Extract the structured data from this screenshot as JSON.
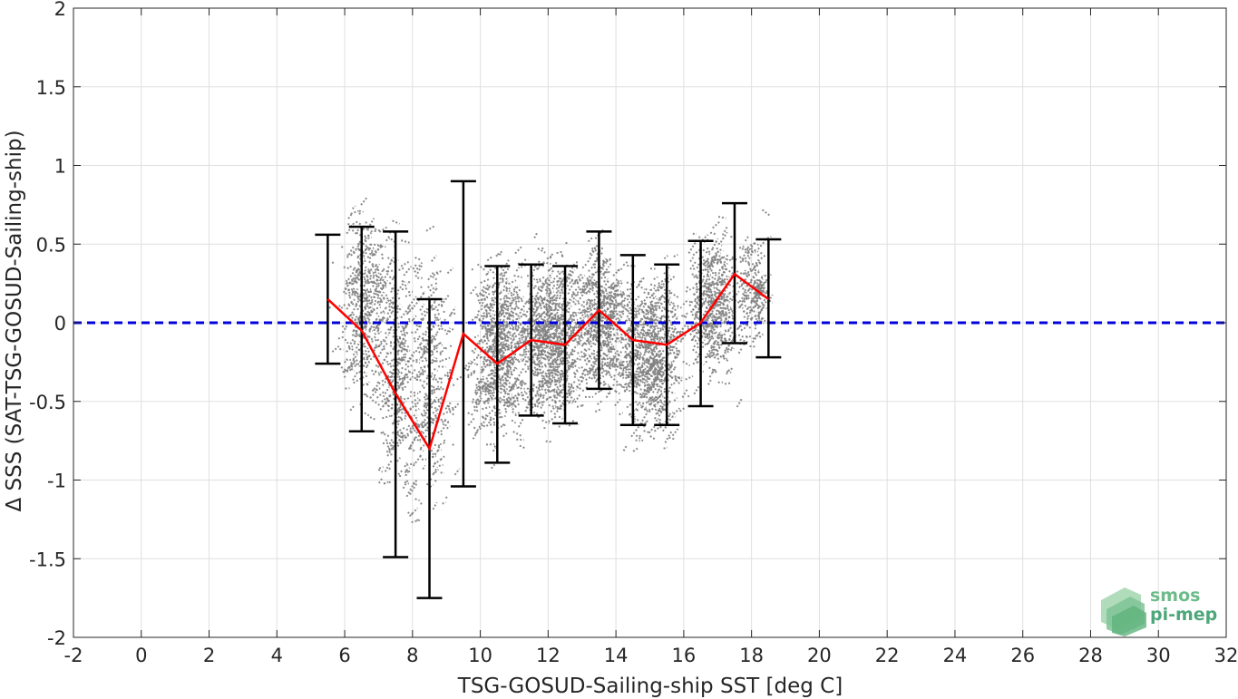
{
  "chart_data": {
    "type": "scatter",
    "xlabel": "TSG-GOSUD-Sailing-ship SST [deg C]",
    "ylabel": "Δ SSS (SAT-TSG-GOSUD-Sailing-ship)",
    "xlim": [
      -2,
      32
    ],
    "ylim": [
      -2,
      2
    ],
    "x_ticks": [
      -2,
      0,
      2,
      4,
      6,
      8,
      10,
      12,
      14,
      16,
      18,
      20,
      22,
      24,
      26,
      28,
      30,
      32
    ],
    "y_ticks": [
      -2,
      -1.5,
      -1,
      -0.5,
      0,
      0.5,
      1,
      1.5,
      2
    ],
    "x_tick_labels": [
      "-2",
      "0",
      "2",
      "4",
      "6",
      "8",
      "10",
      "12",
      "14",
      "16",
      "18",
      "20",
      "22",
      "24",
      "26",
      "28",
      "30",
      "32"
    ],
    "y_tick_labels": [
      "-2",
      "-1.5",
      "-1",
      "-0.5",
      "0",
      "0.5",
      "1",
      "1.5",
      "2"
    ],
    "grid": true,
    "reference_line": {
      "y": 0,
      "style": "dashed",
      "color": "#0000dd"
    },
    "binned_stats": {
      "x": [
        5.5,
        6.5,
        7.5,
        8.5,
        9.5,
        10.5,
        11.5,
        12.5,
        13.5,
        14.5,
        15.5,
        16.5,
        17.5,
        18.5
      ],
      "mean": [
        0.15,
        -0.05,
        -0.45,
        -0.8,
        -0.07,
        -0.26,
        -0.11,
        -0.14,
        0.08,
        -0.11,
        -0.14,
        0.0,
        0.31,
        0.15
      ],
      "lower": [
        -0.26,
        -0.69,
        -1.49,
        -1.75,
        -1.04,
        -0.89,
        -0.59,
        -0.64,
        -0.42,
        -0.65,
        -0.65,
        -0.53,
        -0.13,
        -0.22
      ],
      "upper": [
        0.56,
        0.61,
        0.58,
        0.15,
        0.9,
        0.36,
        0.37,
        0.36,
        0.58,
        0.43,
        0.37,
        0.52,
        0.76,
        0.53
      ],
      "mean_color": "#ff0000",
      "errorbar_color": "#000000"
    },
    "scatter_color": "#808080",
    "scatter_clusters": [
      {
        "x": 6.5,
        "y": 0.1,
        "sx": 0.6,
        "sy": 0.5,
        "n": 320
      },
      {
        "x": 7.5,
        "y": -0.3,
        "sx": 0.5,
        "sy": 0.6,
        "n": 260
      },
      {
        "x": 8.5,
        "y": -0.4,
        "sx": 0.6,
        "sy": 0.6,
        "n": 240
      },
      {
        "x": 10.5,
        "y": -0.2,
        "sx": 0.7,
        "sy": 0.45,
        "n": 520
      },
      {
        "x": 12,
        "y": -0.1,
        "sx": 0.8,
        "sy": 0.4,
        "n": 640
      },
      {
        "x": 13.5,
        "y": 0.0,
        "sx": 0.7,
        "sy": 0.35,
        "n": 460
      },
      {
        "x": 15,
        "y": -0.2,
        "sx": 0.8,
        "sy": 0.4,
        "n": 560
      },
      {
        "x": 16.8,
        "y": 0.1,
        "sx": 0.6,
        "sy": 0.35,
        "n": 380
      },
      {
        "x": 18,
        "y": 0.2,
        "sx": 0.35,
        "sy": 0.3,
        "n": 150
      }
    ]
  },
  "logo": {
    "line1": "smos",
    "line2": "pi-mep"
  }
}
